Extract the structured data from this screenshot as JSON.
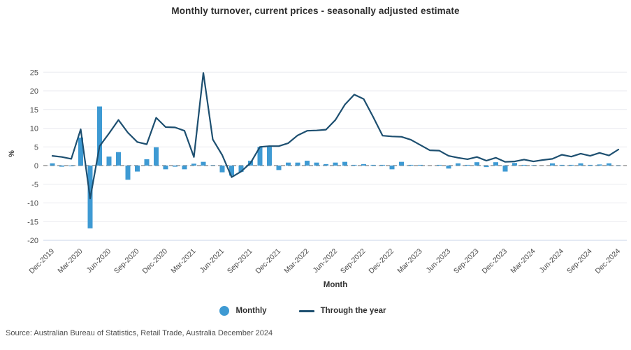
{
  "title": "Monthly turnover, current prices - seasonally adjusted estimate",
  "source": "Source: Australian Bureau of Statistics, Retail Trade, Australia December 2024",
  "chart_data": {
    "type": "bar",
    "subtype": "bar-line combo",
    "title": "Monthly turnover, current prices - seasonally adjusted estimate",
    "xlabel": "Month",
    "ylabel": "%",
    "ylim": [
      -20,
      25
    ],
    "y_ticks": [
      25,
      20,
      15,
      10,
      5,
      0,
      -5,
      -10,
      -15,
      -20
    ],
    "x_tick_step": 3,
    "grid": "horizontal",
    "zero_line": "dashed-gray",
    "legend_position": "bottom",
    "categories": [
      "Dec-2019",
      "Jan-2020",
      "Feb-2020",
      "Mar-2020",
      "Apr-2020",
      "May-2020",
      "Jun-2020",
      "Jul-2020",
      "Aug-2020",
      "Sep-2020",
      "Oct-2020",
      "Nov-2020",
      "Dec-2020",
      "Jan-2021",
      "Feb-2021",
      "Mar-2021",
      "Apr-2021",
      "May-2021",
      "Jun-2021",
      "Jul-2021",
      "Aug-2021",
      "Sep-2021",
      "Oct-2021",
      "Nov-2021",
      "Dec-2021",
      "Jan-2022",
      "Feb-2022",
      "Mar-2022",
      "Apr-2022",
      "May-2022",
      "Jun-2022",
      "Jul-2022",
      "Aug-2022",
      "Sep-2022",
      "Oct-2022",
      "Nov-2022",
      "Dec-2022",
      "Jan-2023",
      "Feb-2023",
      "Mar-2023",
      "Apr-2023",
      "May-2023",
      "Jun-2023",
      "Jul-2023",
      "Aug-2023",
      "Sep-2023",
      "Oct-2023",
      "Nov-2023",
      "Dec-2023",
      "Jan-2024",
      "Feb-2024",
      "Mar-2024",
      "Apr-2024",
      "May-2024",
      "Jun-2024",
      "Jul-2024",
      "Aug-2024",
      "Sep-2024",
      "Oct-2024",
      "Nov-2024",
      "Dec-2024"
    ],
    "series": [
      {
        "name": "Monthly",
        "type": "bar",
        "color": "#3e9ad3",
        "values": [
          0.6,
          -0.3,
          -0.2,
          7.5,
          -16.8,
          15.8,
          2.4,
          3.6,
          -3.8,
          -1.6,
          1.7,
          4.9,
          -1.0,
          -0.3,
          -1.0,
          0.5,
          1.0,
          0.1,
          -1.8,
          -2.7,
          -1.7,
          1.3,
          5.0,
          5.0,
          -1.2,
          0.8,
          0.8,
          1.3,
          0.8,
          0.4,
          0.8,
          1.0,
          0.2,
          0.4,
          0.2,
          0.2,
          -1.0,
          1.0,
          0.2,
          0.2,
          0.0,
          0.2,
          -0.8,
          0.6,
          0.2,
          0.9,
          -0.4,
          0.9,
          -1.6,
          0.7,
          0.2,
          0.1,
          0.0,
          0.6,
          0.2,
          0.2,
          0.6,
          0.2,
          0.3,
          0.6,
          -0.1
        ]
      },
      {
        "name": "Through the year",
        "type": "line",
        "color": "#1d4f70",
        "values": [
          2.6,
          2.3,
          1.8,
          9.7,
          -8.8,
          5.2,
          8.6,
          12.2,
          8.8,
          6.3,
          5.7,
          12.8,
          10.3,
          10.2,
          9.3,
          2.3,
          24.8,
          7.0,
          2.8,
          -3.1,
          -1.6,
          0.7,
          5.0,
          5.2,
          5.2,
          6.0,
          8.1,
          9.3,
          9.4,
          9.6,
          12.2,
          16.3,
          19.0,
          17.8,
          13.0,
          8.0,
          7.8,
          7.7,
          6.9,
          5.5,
          4.1,
          4.0,
          2.6,
          2.1,
          1.7,
          2.3,
          1.3,
          2.1,
          1.0,
          1.1,
          1.6,
          1.1,
          1.5,
          1.8,
          2.9,
          2.4,
          3.2,
          2.6,
          3.4,
          2.7,
          4.3
        ]
      }
    ],
    "colors": {
      "grid": "#e9eaef",
      "bottom_grid": "#c9d4e8",
      "zero_dash": "#b0b0b0",
      "tick_text": "#4a4a4a"
    }
  }
}
